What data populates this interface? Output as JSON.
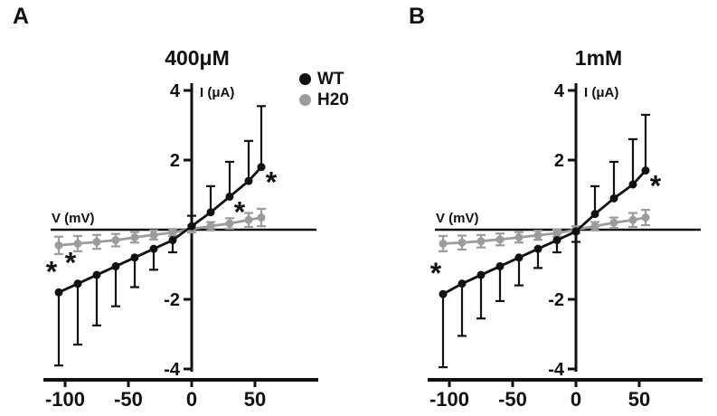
{
  "figure": {
    "panels": [
      {
        "letter": "A"
      },
      {
        "letter": "B"
      }
    ]
  },
  "legend": {
    "position": "top-center-between-panels",
    "items": [
      {
        "label": "WT",
        "color": "#111111"
      },
      {
        "label": "H20",
        "color": "#9c9c9c"
      }
    ]
  },
  "chart_data": [
    {
      "type": "line",
      "panel": "A",
      "title": "400μM",
      "xlabel": "V (mV)",
      "ylabel": "I (μA)",
      "grid": false,
      "xlim": [
        -110,
        60
      ],
      "ylim": [
        -4,
        4
      ],
      "x_ticks": [
        -100,
        -50,
        0,
        50
      ],
      "y_ticks": [
        4,
        2,
        -2,
        -4
      ],
      "x": [
        -105,
        -90,
        -75,
        -60,
        -45,
        -30,
        -15,
        0,
        15,
        30,
        45,
        55
      ],
      "series": [
        {
          "name": "WT",
          "color": "#111111",
          "err_dir": "away",
          "values": [
            -1.8,
            -1.55,
            -1.3,
            -1.05,
            -0.8,
            -0.55,
            -0.3,
            0.1,
            0.5,
            0.95,
            1.4,
            1.8
          ],
          "err": [
            2.1,
            1.75,
            1.45,
            1.15,
            0.85,
            0.6,
            0.35,
            0.3,
            0.75,
            1.0,
            1.15,
            1.75
          ]
        },
        {
          "name": "H20",
          "color": "#9c9c9c",
          "err_dir": "both",
          "values": [
            -0.45,
            -0.4,
            -0.35,
            -0.3,
            -0.22,
            -0.15,
            -0.08,
            0.02,
            0.1,
            0.18,
            0.28,
            0.35
          ],
          "err": [
            0.25,
            0.22,
            0.2,
            0.18,
            0.15,
            0.13,
            0.1,
            0.1,
            0.12,
            0.15,
            0.2,
            0.25
          ]
        }
      ],
      "asterisks": [
        {
          "x": -105,
          "pos": "above"
        },
        {
          "x": -90,
          "pos": "above"
        },
        {
          "x": 30,
          "pos": "below"
        },
        {
          "x": 55,
          "pos": "below"
        }
      ]
    },
    {
      "type": "line",
      "panel": "B",
      "title": "1mM",
      "xlabel": "V (mV)",
      "ylabel": "I (μA)",
      "grid": false,
      "xlim": [
        -110,
        60
      ],
      "ylim": [
        -4,
        4
      ],
      "x_ticks": [
        -100,
        -50,
        0,
        50
      ],
      "y_ticks": [
        4,
        2,
        -2,
        -4
      ],
      "x": [
        -105,
        -90,
        -75,
        -60,
        -45,
        -30,
        -15,
        0,
        15,
        30,
        45,
        55
      ],
      "series": [
        {
          "name": "WT",
          "color": "#111111",
          "err_dir": "away",
          "values": [
            -1.85,
            -1.55,
            -1.3,
            -1.05,
            -0.8,
            -0.55,
            -0.3,
            -0.05,
            0.45,
            0.9,
            1.3,
            1.7
          ],
          "err": [
            2.1,
            1.5,
            1.25,
            1.0,
            0.8,
            0.55,
            0.35,
            0.3,
            0.8,
            1.05,
            1.3,
            1.6
          ]
        },
        {
          "name": "H20",
          "color": "#9c9c9c",
          "err_dir": "both",
          "values": [
            -0.4,
            -0.37,
            -0.33,
            -0.28,
            -0.22,
            -0.16,
            -0.1,
            0.0,
            0.1,
            0.2,
            0.28,
            0.35
          ],
          "err": [
            0.22,
            0.2,
            0.18,
            0.17,
            0.15,
            0.13,
            0.1,
            0.1,
            0.12,
            0.15,
            0.2,
            0.22
          ]
        }
      ],
      "asterisks": [
        {
          "x": -105,
          "pos": "above"
        },
        {
          "x": 55,
          "pos": "below"
        }
      ]
    }
  ]
}
